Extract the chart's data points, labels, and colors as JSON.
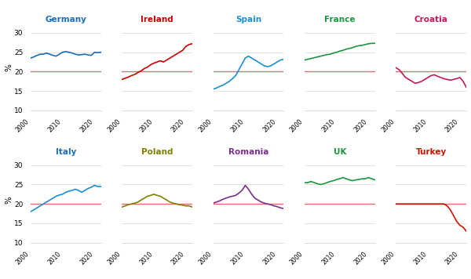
{
  "countries": [
    "Germany",
    "Ireland",
    "Spain",
    "France",
    "Croatia",
    "Italy",
    "Poland",
    "Romania",
    "UK",
    "Turkey"
  ],
  "colors": [
    "#1a6eb5",
    "#cc0000",
    "#1a8fd1",
    "#1a9641",
    "#c2185b",
    "#1a8fd1",
    "#808000",
    "#7b2d8b",
    "#1a9641",
    "#cc1100"
  ],
  "title_colors": [
    "#1a6eb5",
    "#cc0000",
    "#1a8fd1",
    "#1a9641",
    "#c2185b",
    "#1a6eb5",
    "#808000",
    "#7b2d8b",
    "#1a9641",
    "#cc1100"
  ],
  "reference_line": 20,
  "ylim": [
    10,
    32
  ],
  "yticks": [
    10,
    15,
    20,
    25,
    30
  ],
  "years": [
    2000,
    2001,
    2002,
    2003,
    2004,
    2005,
    2006,
    2007,
    2008,
    2009,
    2010,
    2011,
    2012,
    2013,
    2014,
    2015,
    2016,
    2017,
    2018,
    2019,
    2020,
    2021,
    2022
  ],
  "data": {
    "Germany": [
      23.5,
      23.8,
      24.2,
      24.5,
      24.5,
      24.8,
      24.5,
      24.2,
      24.0,
      24.5,
      25.0,
      25.2,
      25.0,
      24.8,
      24.5,
      24.3,
      24.4,
      24.5,
      24.3,
      24.2,
      25.0,
      24.9,
      25.0
    ],
    "Ireland": [
      18.0,
      18.3,
      18.6,
      19.0,
      19.3,
      19.8,
      20.2,
      20.8,
      21.2,
      21.8,
      22.2,
      22.5,
      22.8,
      22.5,
      23.0,
      23.5,
      24.0,
      24.5,
      25.0,
      25.5,
      26.5,
      27.0,
      27.2
    ],
    "Spain": [
      15.5,
      15.8,
      16.2,
      16.5,
      17.0,
      17.5,
      18.2,
      19.0,
      20.5,
      22.0,
      23.5,
      24.0,
      23.5,
      23.0,
      22.5,
      22.0,
      21.5,
      21.3,
      21.5,
      22.0,
      22.5,
      23.0,
      23.2
    ],
    "France": [
      23.0,
      23.2,
      23.4,
      23.6,
      23.8,
      24.0,
      24.2,
      24.4,
      24.5,
      24.8,
      25.0,
      25.3,
      25.5,
      25.8,
      26.0,
      26.2,
      26.5,
      26.7,
      26.8,
      27.0,
      27.2,
      27.3,
      27.3
    ],
    "Croatia": [
      21.0,
      20.5,
      19.5,
      18.5,
      18.0,
      17.5,
      17.0,
      17.2,
      17.5,
      18.0,
      18.5,
      19.0,
      19.2,
      18.8,
      18.5,
      18.2,
      18.0,
      17.8,
      18.0,
      18.2,
      18.5,
      17.5,
      16.0
    ],
    "Italy": [
      18.0,
      18.5,
      19.0,
      19.5,
      20.0,
      20.5,
      21.0,
      21.5,
      22.0,
      22.3,
      22.5,
      23.0,
      23.3,
      23.5,
      23.8,
      23.5,
      23.0,
      23.5,
      24.0,
      24.3,
      24.8,
      24.5,
      24.5
    ],
    "Poland": [
      19.2,
      19.5,
      19.8,
      20.0,
      20.2,
      20.5,
      21.0,
      21.5,
      22.0,
      22.2,
      22.5,
      22.2,
      22.0,
      21.5,
      21.0,
      20.5,
      20.2,
      20.0,
      19.8,
      19.7,
      19.5,
      19.5,
      19.2
    ],
    "Romania": [
      20.2,
      20.5,
      20.8,
      21.2,
      21.5,
      21.8,
      22.0,
      22.2,
      22.8,
      23.5,
      24.8,
      23.8,
      22.5,
      21.5,
      21.0,
      20.5,
      20.2,
      20.0,
      19.8,
      19.5,
      19.3,
      19.0,
      18.8
    ],
    "UK": [
      25.5,
      25.5,
      25.8,
      25.5,
      25.2,
      25.0,
      25.2,
      25.5,
      25.8,
      26.0,
      26.3,
      26.5,
      26.8,
      26.5,
      26.2,
      26.0,
      26.2,
      26.3,
      26.5,
      26.5,
      26.8,
      26.5,
      26.2
    ],
    "Turkey": [
      20.0,
      20.0,
      20.0,
      20.0,
      20.0,
      20.0,
      20.0,
      20.0,
      20.0,
      20.0,
      20.0,
      20.0,
      20.0,
      20.0,
      20.0,
      20.0,
      19.5,
      18.5,
      17.0,
      15.5,
      14.5,
      14.0,
      13.0
    ]
  },
  "ylabel": "%",
  "background_color": "#ffffff",
  "grid_color": "#dddddd",
  "ref_line_color": "#e07070"
}
